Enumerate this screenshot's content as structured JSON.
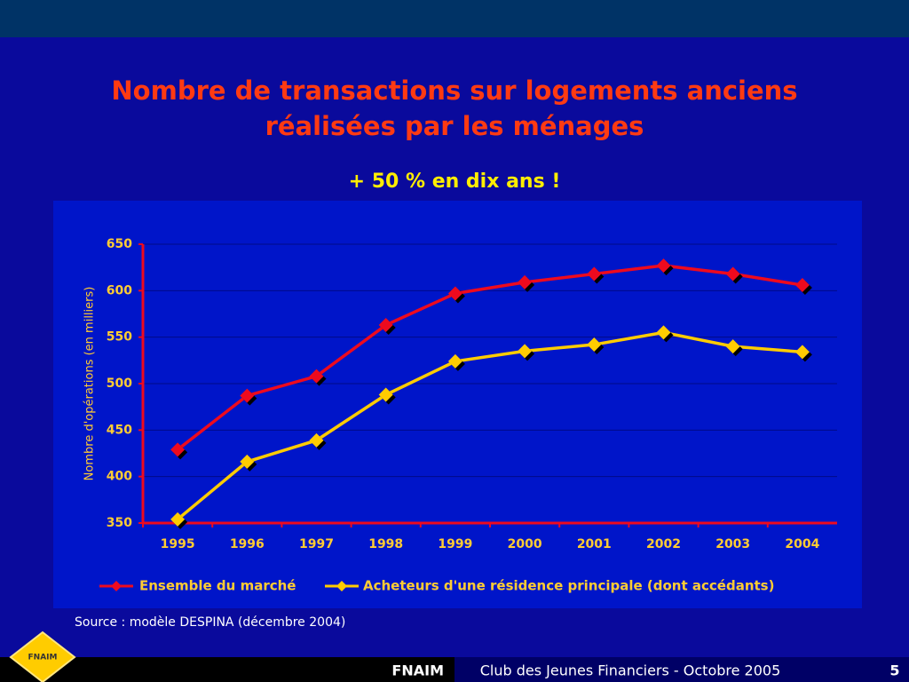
{
  "chart_data": {
    "type": "line",
    "title": "Nombre de transactions sur logements anciens réalisées par les ménages",
    "subtitle": "+ 50 % en dix ans !",
    "y_label": "Nombre d'opérations (en milliers)",
    "categories": [
      "1995",
      "1996",
      "1997",
      "1998",
      "1999",
      "2000",
      "2001",
      "2002",
      "2003",
      "2004"
    ],
    "series": [
      {
        "name": "Ensemble du marché",
        "color": "#ee0a1e",
        "values": [
          429,
          487,
          508,
          563,
          597,
          609,
          618,
          627,
          618,
          606
        ]
      },
      {
        "name": "Acheteurs d'une résidence principale (dont accédants)",
        "color": "#ffcc00",
        "values": [
          354,
          416,
          439,
          488,
          524,
          535,
          542,
          555,
          540,
          534
        ]
      }
    ],
    "ylim": [
      350,
      650
    ],
    "yticks": [
      350,
      400,
      450,
      500,
      550,
      600,
      650
    ],
    "grid": true,
    "source": "Source : modèle DESPINA (décembre 2004)"
  },
  "footer": {
    "logo": "FNAIM",
    "brand": "FNAIM",
    "event": "Club des Jeunes Financiers - Octobre 2005",
    "page": "5"
  }
}
